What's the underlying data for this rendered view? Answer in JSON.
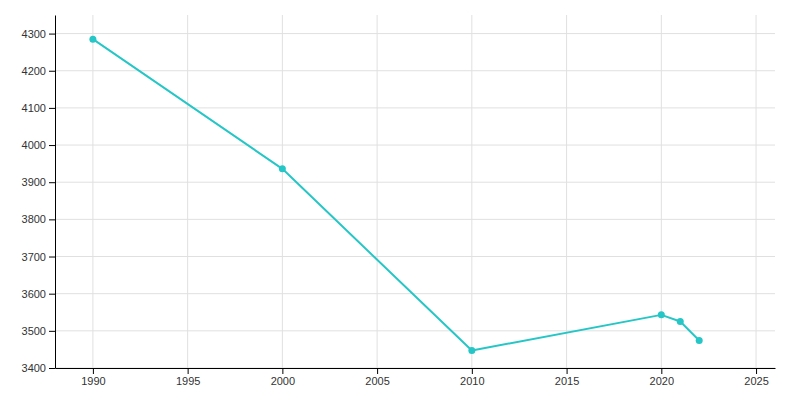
{
  "chart_data": {
    "type": "line",
    "x": [
      1990,
      2000,
      2010,
      2020,
      2021,
      2022
    ],
    "values": [
      4285,
      3936,
      3447,
      3543,
      3525,
      3474
    ],
    "color": "#26c6c6",
    "marker": "circle",
    "xlim": [
      1988,
      2026
    ],
    "ylim": [
      3400,
      4350
    ],
    "xticks": [
      1990,
      1995,
      2000,
      2005,
      2010,
      2015,
      2020,
      2025
    ],
    "yticks": [
      3400,
      3500,
      3600,
      3700,
      3800,
      3900,
      4000,
      4100,
      4200,
      4300
    ],
    "grid": true
  }
}
